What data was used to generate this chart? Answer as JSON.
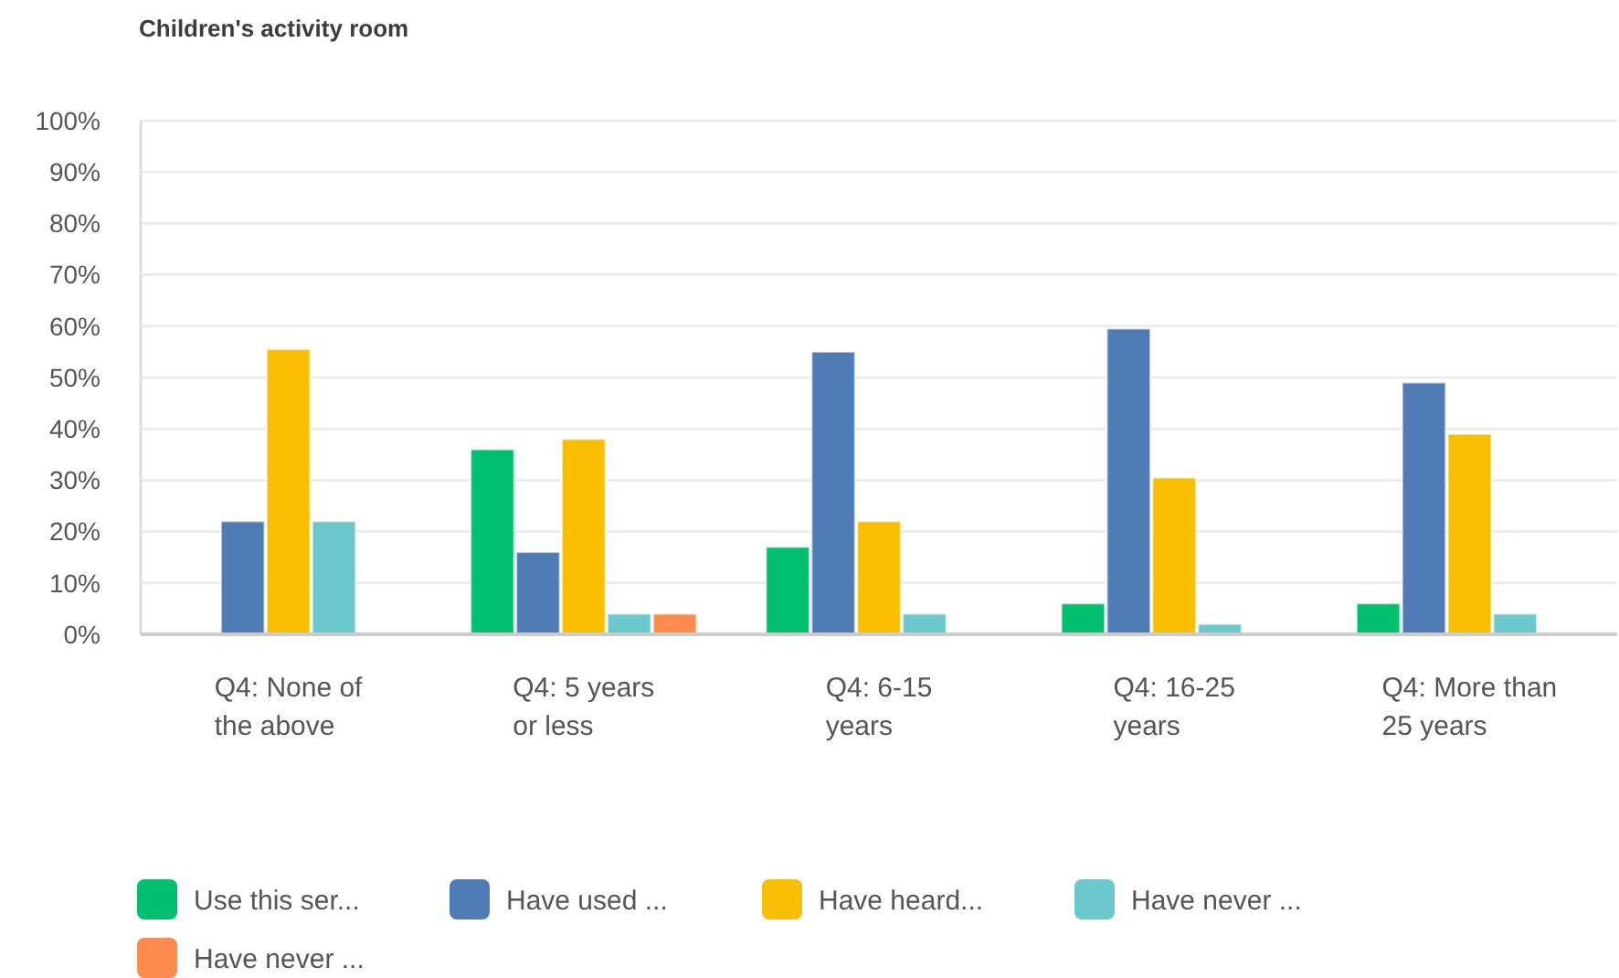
{
  "chart_data": {
    "type": "bar",
    "title": "Children's activity room",
    "categories": [
      "Q4: None of the above",
      "Q4: 5 years or less",
      "Q4: 6-15 years",
      "Q4: 16-25 years",
      "Q4: More than 25 years"
    ],
    "series": [
      {
        "name": "Use this ser...",
        "color": "#00bf6f",
        "values": [
          0,
          36,
          17,
          6,
          6
        ]
      },
      {
        "name": "Have used ...",
        "color": "#507cb6",
        "values": [
          22,
          16,
          55,
          59.5,
          49
        ]
      },
      {
        "name": "Have heard...",
        "color": "#f9be00",
        "values": [
          55.5,
          38,
          22,
          30.5,
          39
        ]
      },
      {
        "name": "Have never ...",
        "color": "#6bc8cd",
        "values": [
          22,
          4,
          4,
          2,
          4
        ]
      },
      {
        "name": "Have never ...",
        "color": "#ff8b4f",
        "values": [
          0,
          4,
          0,
          0,
          0
        ]
      }
    ],
    "ylim": [
      0,
      100
    ],
    "yticks": [
      {
        "value": 0,
        "label": "0%"
      },
      {
        "value": 10,
        "label": "10%"
      },
      {
        "value": 20,
        "label": "20%"
      },
      {
        "value": 30,
        "label": "30%"
      },
      {
        "value": 40,
        "label": "40%"
      },
      {
        "value": 50,
        "label": "50%"
      },
      {
        "value": 60,
        "label": "60%"
      },
      {
        "value": 70,
        "label": "70%"
      },
      {
        "value": 80,
        "label": "80%"
      },
      {
        "value": 90,
        "label": "90%"
      },
      {
        "value": 100,
        "label": "100%"
      }
    ],
    "grid": "y",
    "legend": "bottom"
  }
}
